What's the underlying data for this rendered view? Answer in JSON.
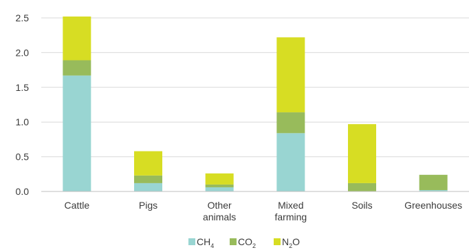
{
  "chart_data": {
    "type": "bar",
    "stacked": true,
    "title": "",
    "xlabel": "",
    "ylabel": "",
    "categories": [
      [
        "Cattle"
      ],
      [
        "Pigs"
      ],
      [
        "Other",
        "animals"
      ],
      [
        "Mixed",
        "farming"
      ],
      [
        "Soils"
      ],
      [
        "Greenhouses"
      ]
    ],
    "series": [
      {
        "name": "CH",
        "subscript": "4",
        "color": "#99d5d2",
        "values": [
          1.67,
          0.12,
          0.06,
          0.84,
          0.0,
          0.02
        ]
      },
      {
        "name": "CO",
        "subscript": "2",
        "color": "#98bb5b",
        "values": [
          0.22,
          0.11,
          0.04,
          0.3,
          0.12,
          0.22
        ]
      },
      {
        "name": "N",
        "subscript": "2",
        "suffix": "O",
        "color": "#d7dd23",
        "values": [
          0.63,
          0.35,
          0.16,
          1.08,
          0.85,
          0.0
        ]
      }
    ],
    "ylim": [
      0,
      2.5
    ],
    "yticks": [
      "0.0",
      "0.5",
      "1.0",
      "1.5",
      "2.0",
      "2.5"
    ],
    "grid": true,
    "legend": "bottom"
  }
}
